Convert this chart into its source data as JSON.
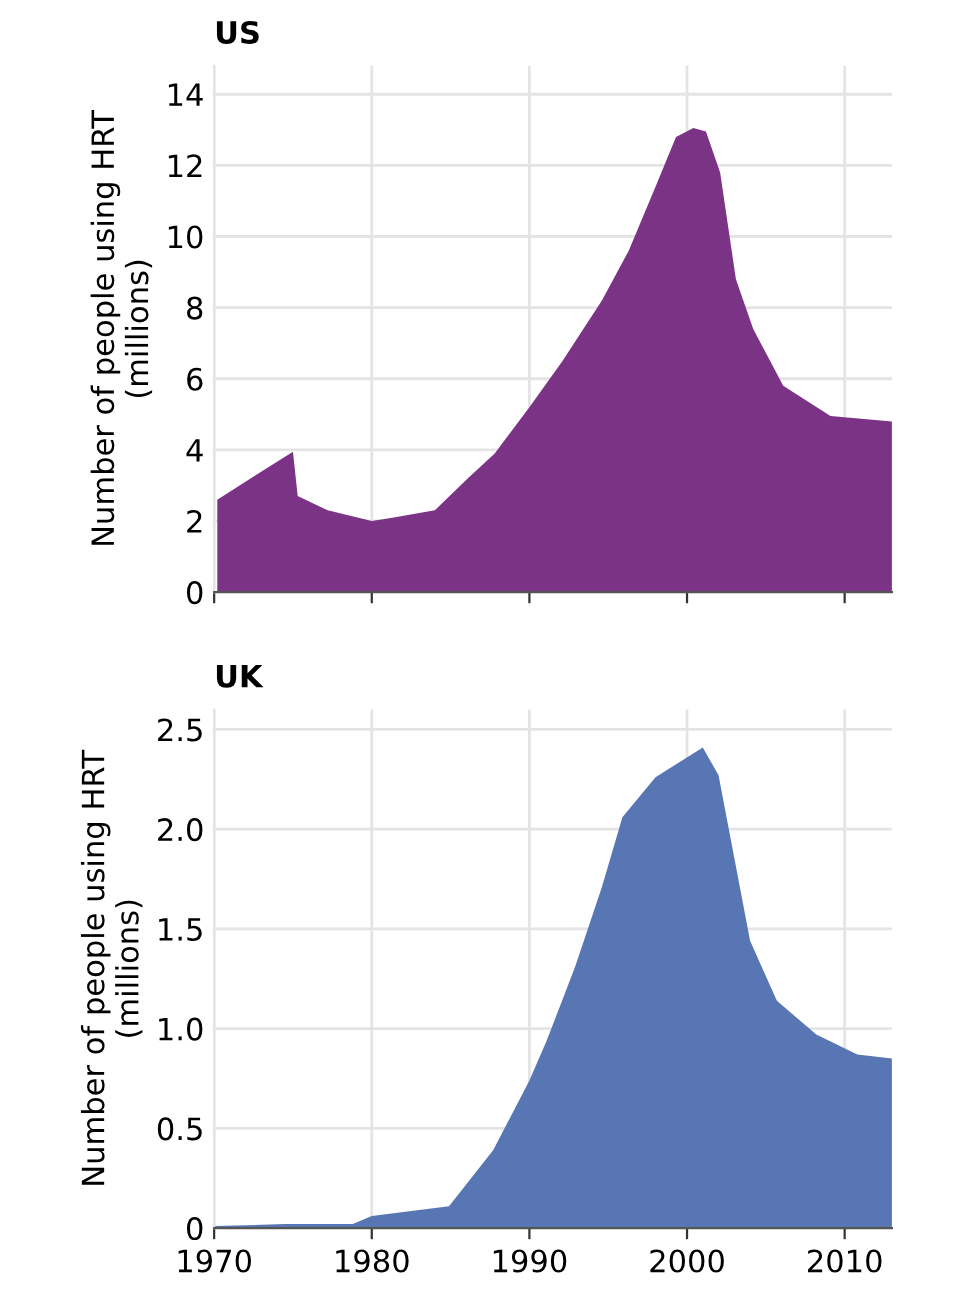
{
  "chart_data": [
    {
      "type": "area",
      "title": "US",
      "ylabel": "Number of people using HRT\n(millions)",
      "x": [
        1970.2,
        1975,
        1975.3,
        1977.2,
        1980,
        1981.4,
        1984,
        1986.1,
        1987.8,
        1990,
        1992.1,
        1994.6,
        1996.3,
        1998,
        1999.3,
        2000.4,
        2001.2,
        2002.1,
        2003.1,
        2004.2,
        2006.1,
        2009.1,
        2013
      ],
      "series": [
        {
          "color": "#7b3385",
          "values": [
            2.6,
            3.95,
            2.7,
            2.3,
            2.0,
            2.1,
            2.3,
            3.2,
            3.9,
            5.2,
            6.5,
            8.2,
            9.6,
            11.4,
            12.8,
            13.05,
            12.95,
            11.8,
            8.8,
            7.4,
            5.8,
            4.95,
            4.8
          ]
        }
      ],
      "xlim": [
        1970,
        2013
      ],
      "xticks": [
        1970,
        1980,
        1990,
        2000,
        2010
      ],
      "ylim": [
        0,
        14.8
      ],
      "yticks": [
        0,
        2,
        4,
        6,
        8,
        10,
        12,
        14
      ],
      "grid": true,
      "tick_labels": "y"
    },
    {
      "type": "area",
      "title": "UK",
      "ylabel": "Number of people using HRT\n(millions)",
      "x": [
        1970,
        1974.5,
        1978.8,
        1980,
        1984.9,
        1987.7,
        1990,
        1991.1,
        1992.9,
        1994.6,
        1995.9,
        1998,
        2001,
        2002,
        2004,
        2005.7,
        2008.2,
        2010.8,
        2013
      ],
      "series": [
        {
          "color": "#5776b3",
          "values": [
            0.01,
            0.02,
            0.02,
            0.06,
            0.11,
            0.39,
            0.74,
            0.94,
            1.31,
            1.71,
            2.06,
            2.26,
            2.41,
            2.27,
            1.44,
            1.14,
            0.97,
            0.87,
            0.85
          ]
        }
      ],
      "xlim": [
        1970,
        2013
      ],
      "xticks": [
        1970,
        1980,
        1990,
        2000,
        2010
      ],
      "ylim": [
        0,
        2.6
      ],
      "yticks": [
        0,
        {
          "value": 0.5,
          "label": "0.5"
        },
        {
          "value": 1.0,
          "label": "1.0"
        },
        {
          "value": 1.5,
          "label": "1.5"
        },
        {
          "value": 2.0,
          "label": "2.0"
        },
        {
          "value": 2.5,
          "label": "2.5"
        }
      ],
      "grid": true
    }
  ]
}
